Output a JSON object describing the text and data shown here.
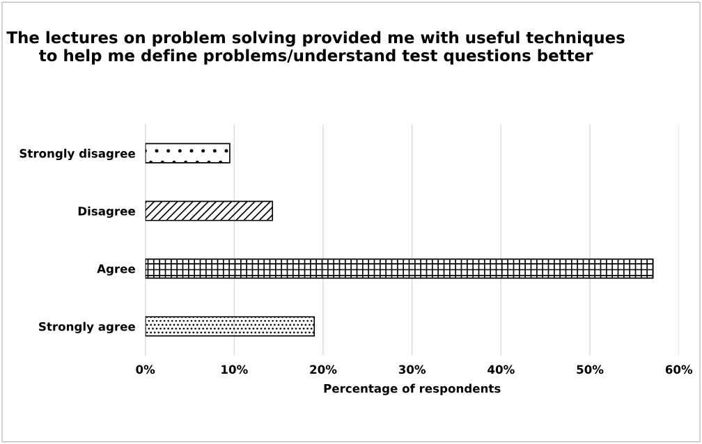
{
  "chart_data": {
    "type": "bar",
    "orientation": "horizontal",
    "title": "The lectures on problem solving provided me with useful techniques to help me define problems/understand test questions better",
    "categories": [
      "Strongly disagree",
      "Disagree",
      "Agree",
      "Strongly agree"
    ],
    "values": [
      9.5,
      14.3,
      57.1,
      19.0
    ],
    "xlabel": "Percentage of respondents",
    "xlim": [
      0,
      60
    ],
    "xticks": [
      {
        "value": 0,
        "label": "0%"
      },
      {
        "value": 10,
        "label": "10%"
      },
      {
        "value": 20,
        "label": "20%"
      },
      {
        "value": 30,
        "label": "30%"
      },
      {
        "value": 40,
        "label": "40%"
      },
      {
        "value": 50,
        "label": "50%"
      },
      {
        "value": 60,
        "label": "60%"
      }
    ],
    "grid": "x",
    "legend": false
  }
}
